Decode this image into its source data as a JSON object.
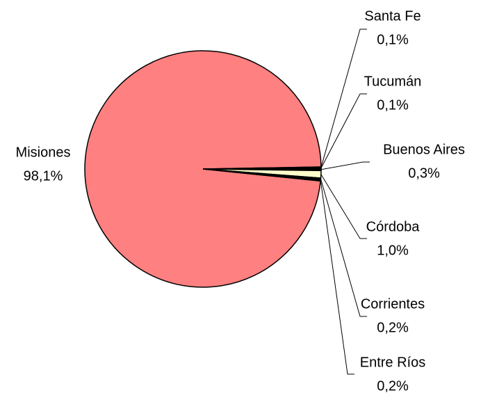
{
  "chart_data": {
    "type": "pie",
    "categories": [
      "Misiones",
      "Santa Fe",
      "Tucumán",
      "Buenos Aires",
      "Córdoba",
      "Corrientes",
      "Entre Ríos"
    ],
    "values": [
      98.1,
      0.1,
      0.1,
      0.3,
      1.0,
      0.2,
      0.2
    ],
    "value_labels": [
      "98,1%",
      "0,1%",
      "0,1%",
      "0,3%",
      "1,0%",
      "0,2%",
      "0,2%"
    ],
    "colors": [
      "#ff8080",
      "#000000",
      "#000000",
      "#000000",
      "#ffffcc",
      "#000000",
      "#000000"
    ]
  }
}
